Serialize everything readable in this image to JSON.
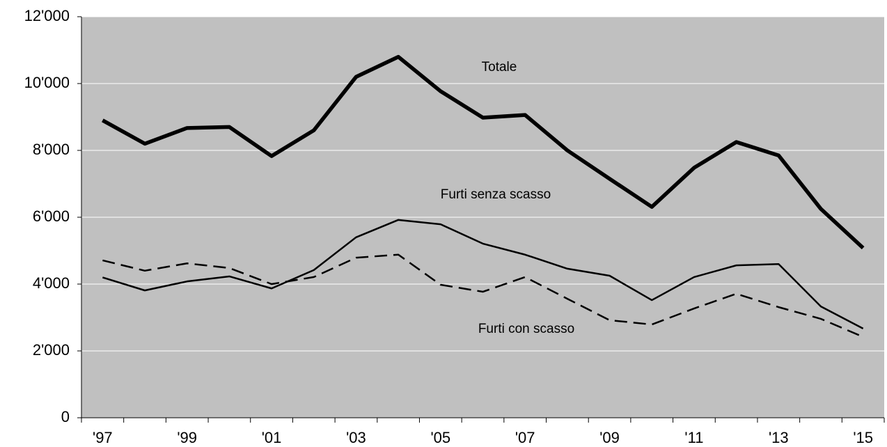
{
  "chart_data": {
    "type": "line",
    "categories": [
      "'97",
      null,
      "'99",
      null,
      "'01",
      null,
      "'03",
      null,
      "'05",
      null,
      "'07",
      null,
      "'09",
      null,
      "'11",
      null,
      "'13",
      null,
      "'15"
    ],
    "series": [
      {
        "name": "Totale",
        "color": "#000000",
        "line_style": "thick",
        "values": [
          8900,
          8200,
          8670,
          8700,
          7830,
          8600,
          10200,
          10800,
          9770,
          8980,
          9060,
          8000,
          7150,
          6310,
          7480,
          8250,
          7850,
          6250,
          5080
        ]
      },
      {
        "name": "Furti senza scasso",
        "color": "#000000",
        "line_style": "solid",
        "values": [
          4200,
          3810,
          4080,
          4230,
          3870,
          4420,
          5400,
          5920,
          5790,
          5210,
          4880,
          4460,
          4250,
          3520,
          4210,
          4560,
          4600,
          3330,
          2670
        ]
      },
      {
        "name": "Furti con scasso",
        "color": "#000000",
        "line_style": "dashed",
        "values": [
          4710,
          4400,
          4620,
          4480,
          4000,
          4210,
          4790,
          4880,
          3980,
          3770,
          4210,
          3560,
          2920,
          2790,
          3270,
          3710,
          3310,
          2960,
          2420
        ]
      }
    ],
    "ylim": [
      0,
      12000
    ],
    "yticks": [
      0,
      {
        "value": 2000,
        "label": "2'000"
      },
      {
        "value": 4000,
        "label": "4'000"
      },
      {
        "value": 6000,
        "label": "6'000"
      },
      {
        "value": 8000,
        "label": "8'000"
      },
      {
        "value": 10000,
        "label": "10'000"
      },
      {
        "value": 12000,
        "label": "12'000"
      }
    ],
    "grid": true,
    "background": "#c0c0c0"
  }
}
